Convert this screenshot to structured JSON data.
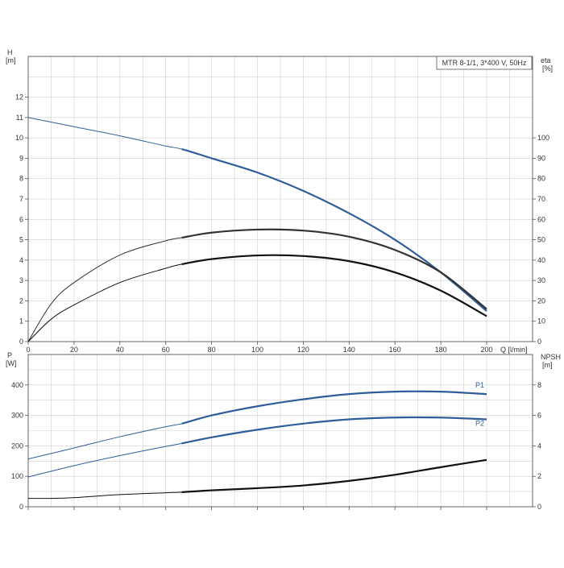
{
  "chart_data": [
    {
      "type": "line",
      "title": "MTR 8-1/1, 3*400 V, 50Hz",
      "xlabel": "Q [l/min]",
      "xlim": [
        0,
        200
      ],
      "x_ticks": [
        0,
        20,
        40,
        60,
        80,
        100,
        120,
        140,
        160,
        180,
        200
      ],
      "grid": true,
      "y_left": {
        "label_lines": [
          "H",
          "[m]"
        ],
        "ylim": [
          0,
          14
        ],
        "ticks": [
          0,
          1,
          2,
          3,
          4,
          5,
          6,
          7,
          8,
          9,
          10,
          11,
          12
        ]
      },
      "y_right": {
        "label_lines": [
          "eta",
          "[%]"
        ],
        "ylim": [
          0,
          140
        ],
        "ticks": [
          0,
          10,
          20,
          30,
          40,
          50,
          60,
          70,
          80,
          90,
          100
        ]
      },
      "series": [
        {
          "axis": "left",
          "color": "#2f5d9a",
          "x": [
            0,
            20,
            40,
            60,
            67,
            80,
            100,
            120,
            140,
            160,
            180,
            200
          ],
          "y": [
            11.0,
            10.55,
            10.1,
            9.6,
            9.45,
            9.0,
            8.3,
            7.4,
            6.3,
            5.0,
            3.4,
            1.5
          ]
        },
        {
          "axis": "right",
          "color": "#333333",
          "x": [
            0,
            10,
            20,
            40,
            60,
            67,
            80,
            100,
            120,
            140,
            160,
            180,
            200
          ],
          "y": [
            0,
            18.5,
            29,
            42.5,
            49.5,
            51,
            53.5,
            55,
            54.5,
            51.5,
            45,
            34,
            16
          ]
        },
        {
          "axis": "right",
          "color": "#111111",
          "x": [
            0,
            10,
            20,
            40,
            60,
            67,
            80,
            100,
            120,
            140,
            160,
            180,
            200
          ],
          "y": [
            0,
            11,
            18,
            29,
            36,
            38,
            40.5,
            42.3,
            42,
            39.5,
            34,
            25,
            12.5
          ]
        }
      ]
    },
    {
      "type": "line",
      "xlim": [
        0,
        200
      ],
      "grid": true,
      "y_left": {
        "label_lines": [
          "P",
          "[W]"
        ],
        "ylim": [
          0,
          500
        ],
        "ticks": [
          0,
          100,
          200,
          300,
          400
        ]
      },
      "y_right": {
        "label_lines": [
          "NPSH",
          "[m]"
        ],
        "ylim": [
          0,
          10
        ],
        "ticks": [
          0,
          2,
          4,
          6,
          8
        ]
      },
      "series": [
        {
          "name": "P1",
          "axis": "left",
          "color": "#2f5d9a",
          "x": [
            0,
            20,
            40,
            60,
            67,
            80,
            100,
            120,
            140,
            160,
            180,
            200
          ],
          "y": [
            157,
            193,
            230,
            263,
            273,
            300,
            330,
            353,
            370,
            378,
            378,
            370
          ]
        },
        {
          "name": "P2",
          "axis": "left",
          "color": "#2f5d9a",
          "x": [
            0,
            20,
            40,
            60,
            67,
            80,
            100,
            120,
            140,
            160,
            180,
            200
          ],
          "y": [
            98,
            135,
            168,
            198,
            208,
            228,
            253,
            273,
            287,
            293,
            293,
            287
          ]
        },
        {
          "axis": "right",
          "color": "#111111",
          "x": [
            0,
            10,
            20,
            40,
            60,
            67,
            80,
            100,
            120,
            140,
            160,
            180,
            200
          ],
          "y": [
            0.55,
            0.55,
            0.6,
            0.8,
            0.92,
            0.96,
            1.08,
            1.22,
            1.4,
            1.7,
            2.1,
            2.6,
            3.08
          ]
        }
      ]
    }
  ]
}
